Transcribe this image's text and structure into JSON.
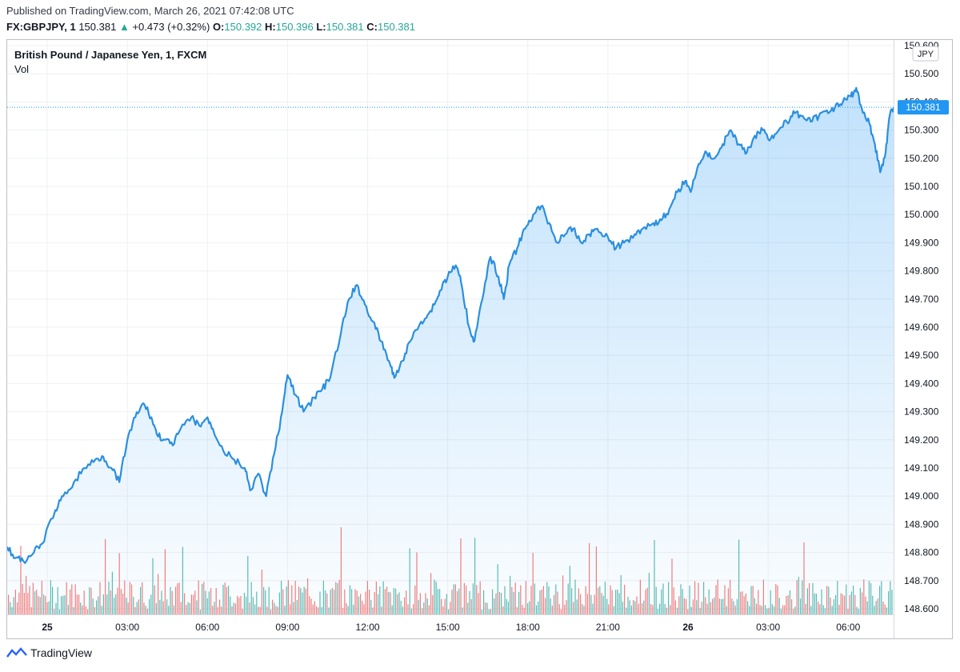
{
  "header": {
    "published": "Published on TradingView.com, March 26, 2021 07:42:08 UTC",
    "symbol": "FX:GBPJPY, 1",
    "last": "150.381",
    "change_arrow": "▲",
    "change": "+0.473 (+0.32%)",
    "o_label": "O:",
    "o_value": "150.392",
    "h_label": "H:",
    "h_value": "150.396",
    "l_label": "L:",
    "l_value": "150.381",
    "c_label": "C:",
    "c_value": "150.381"
  },
  "footer": {
    "brand": "TradingView"
  },
  "colors": {
    "line": "#2a8fdf",
    "volume_up": "#26a69a",
    "volume_down": "#ef5350",
    "price_badge": "#2196f3",
    "grid": "#eef0f3"
  },
  "chart_data": {
    "type": "area",
    "title": "British Pound / Japanese Yen, 1, FXCM",
    "subtitle": "Vol",
    "currency_label": "JPY",
    "last_price_label": "150.381",
    "ylim": [
      148.58,
      150.62
    ],
    "y_ticks": [
      "150.600",
      "150.500",
      "150.400",
      "150.300",
      "150.200",
      "150.100",
      "150.000",
      "149.900",
      "149.800",
      "149.700",
      "149.600",
      "149.500",
      "149.400",
      "149.300",
      "149.200",
      "149.100",
      "149.000",
      "148.900",
      "148.800",
      "148.700",
      "148.600"
    ],
    "x_ticks": [
      {
        "label": "25",
        "hour": 0,
        "bold": true
      },
      {
        "label": "03:00",
        "hour": 3
      },
      {
        "label": "06:00",
        "hour": 6
      },
      {
        "label": "09:00",
        "hour": 9
      },
      {
        "label": "12:00",
        "hour": 12
      },
      {
        "label": "15:00",
        "hour": 15
      },
      {
        "label": "18:00",
        "hour": 18
      },
      {
        "label": "21:00",
        "hour": 21
      },
      {
        "label": "26",
        "hour": 24,
        "bold": true
      },
      {
        "label": "03:00",
        "hour": 27
      },
      {
        "label": "06:00",
        "hour": 30
      }
    ],
    "x_range_hours": [
      -1.5,
      31.7
    ],
    "series": [
      {
        "name": "GBPJPY",
        "points": [
          [
            -1.5,
            148.82
          ],
          [
            -1.2,
            148.78
          ],
          [
            -0.9,
            148.77
          ],
          [
            -0.5,
            148.8
          ],
          [
            -0.2,
            148.83
          ],
          [
            0.3,
            148.95
          ],
          [
            0.6,
            149.0
          ],
          [
            1.0,
            149.05
          ],
          [
            1.4,
            149.1
          ],
          [
            1.8,
            149.13
          ],
          [
            2.1,
            149.14
          ],
          [
            2.4,
            149.1
          ],
          [
            2.7,
            149.05
          ],
          [
            3.0,
            149.2
          ],
          [
            3.3,
            149.28
          ],
          [
            3.6,
            149.33
          ],
          [
            3.9,
            149.28
          ],
          [
            4.1,
            149.22
          ],
          [
            4.4,
            149.2
          ],
          [
            4.7,
            149.18
          ],
          [
            5.0,
            149.24
          ],
          [
            5.4,
            149.28
          ],
          [
            5.7,
            149.25
          ],
          [
            6.0,
            149.28
          ],
          [
            6.2,
            149.24
          ],
          [
            6.6,
            149.16
          ],
          [
            7.0,
            149.13
          ],
          [
            7.4,
            149.1
          ],
          [
            7.6,
            149.02
          ],
          [
            7.9,
            149.08
          ],
          [
            8.2,
            149.0
          ],
          [
            8.5,
            149.15
          ],
          [
            8.8,
            149.3
          ],
          [
            9.0,
            149.43
          ],
          [
            9.3,
            149.36
          ],
          [
            9.6,
            149.3
          ],
          [
            10.0,
            149.35
          ],
          [
            10.3,
            149.38
          ],
          [
            10.6,
            149.42
          ],
          [
            11.0,
            149.58
          ],
          [
            11.3,
            149.7
          ],
          [
            11.6,
            149.75
          ],
          [
            11.9,
            149.68
          ],
          [
            12.2,
            149.62
          ],
          [
            12.5,
            149.55
          ],
          [
            12.8,
            149.48
          ],
          [
            13.0,
            149.42
          ],
          [
            13.3,
            149.48
          ],
          [
            13.6,
            149.55
          ],
          [
            14.0,
            149.62
          ],
          [
            14.3,
            149.65
          ],
          [
            14.6,
            149.7
          ],
          [
            14.8,
            149.75
          ],
          [
            15.0,
            149.78
          ],
          [
            15.3,
            149.82
          ],
          [
            15.5,
            149.76
          ],
          [
            15.8,
            149.6
          ],
          [
            16.0,
            149.55
          ],
          [
            16.3,
            149.7
          ],
          [
            16.6,
            149.85
          ],
          [
            16.9,
            149.78
          ],
          [
            17.1,
            149.7
          ],
          [
            17.3,
            149.82
          ],
          [
            17.6,
            149.88
          ],
          [
            17.9,
            149.95
          ],
          [
            18.2,
            150.0
          ],
          [
            18.5,
            150.03
          ],
          [
            18.8,
            149.97
          ],
          [
            19.1,
            149.9
          ],
          [
            19.4,
            149.93
          ],
          [
            19.7,
            149.95
          ],
          [
            20.0,
            149.9
          ],
          [
            20.3,
            149.93
          ],
          [
            20.6,
            149.95
          ],
          [
            21.0,
            149.92
          ],
          [
            21.3,
            149.88
          ],
          [
            21.6,
            149.9
          ],
          [
            22.0,
            149.93
          ],
          [
            22.3,
            149.95
          ],
          [
            22.7,
            149.97
          ],
          [
            23.0,
            149.98
          ],
          [
            23.3,
            150.02
          ],
          [
            23.6,
            150.08
          ],
          [
            23.9,
            150.12
          ],
          [
            24.1,
            150.08
          ],
          [
            24.4,
            150.18
          ],
          [
            24.7,
            150.22
          ],
          [
            25.0,
            150.2
          ],
          [
            25.3,
            150.25
          ],
          [
            25.6,
            150.3
          ],
          [
            25.9,
            150.25
          ],
          [
            26.2,
            150.22
          ],
          [
            26.5,
            150.28
          ],
          [
            26.8,
            150.3
          ],
          [
            27.1,
            150.27
          ],
          [
            27.4,
            150.3
          ],
          [
            27.7,
            150.33
          ],
          [
            28.0,
            150.36
          ],
          [
            28.3,
            150.35
          ],
          [
            28.6,
            150.33
          ],
          [
            28.9,
            150.35
          ],
          [
            29.2,
            150.37
          ],
          [
            29.5,
            150.38
          ],
          [
            29.8,
            150.4
          ],
          [
            30.1,
            150.42
          ],
          [
            30.3,
            150.45
          ],
          [
            30.5,
            150.38
          ],
          [
            30.8,
            150.32
          ],
          [
            31.0,
            150.25
          ],
          [
            31.2,
            150.15
          ],
          [
            31.4,
            150.22
          ],
          [
            31.55,
            150.35
          ],
          [
            31.7,
            150.381
          ]
        ]
      }
    ],
    "volume_note": "volume bars (green up / red down) along bottom"
  }
}
